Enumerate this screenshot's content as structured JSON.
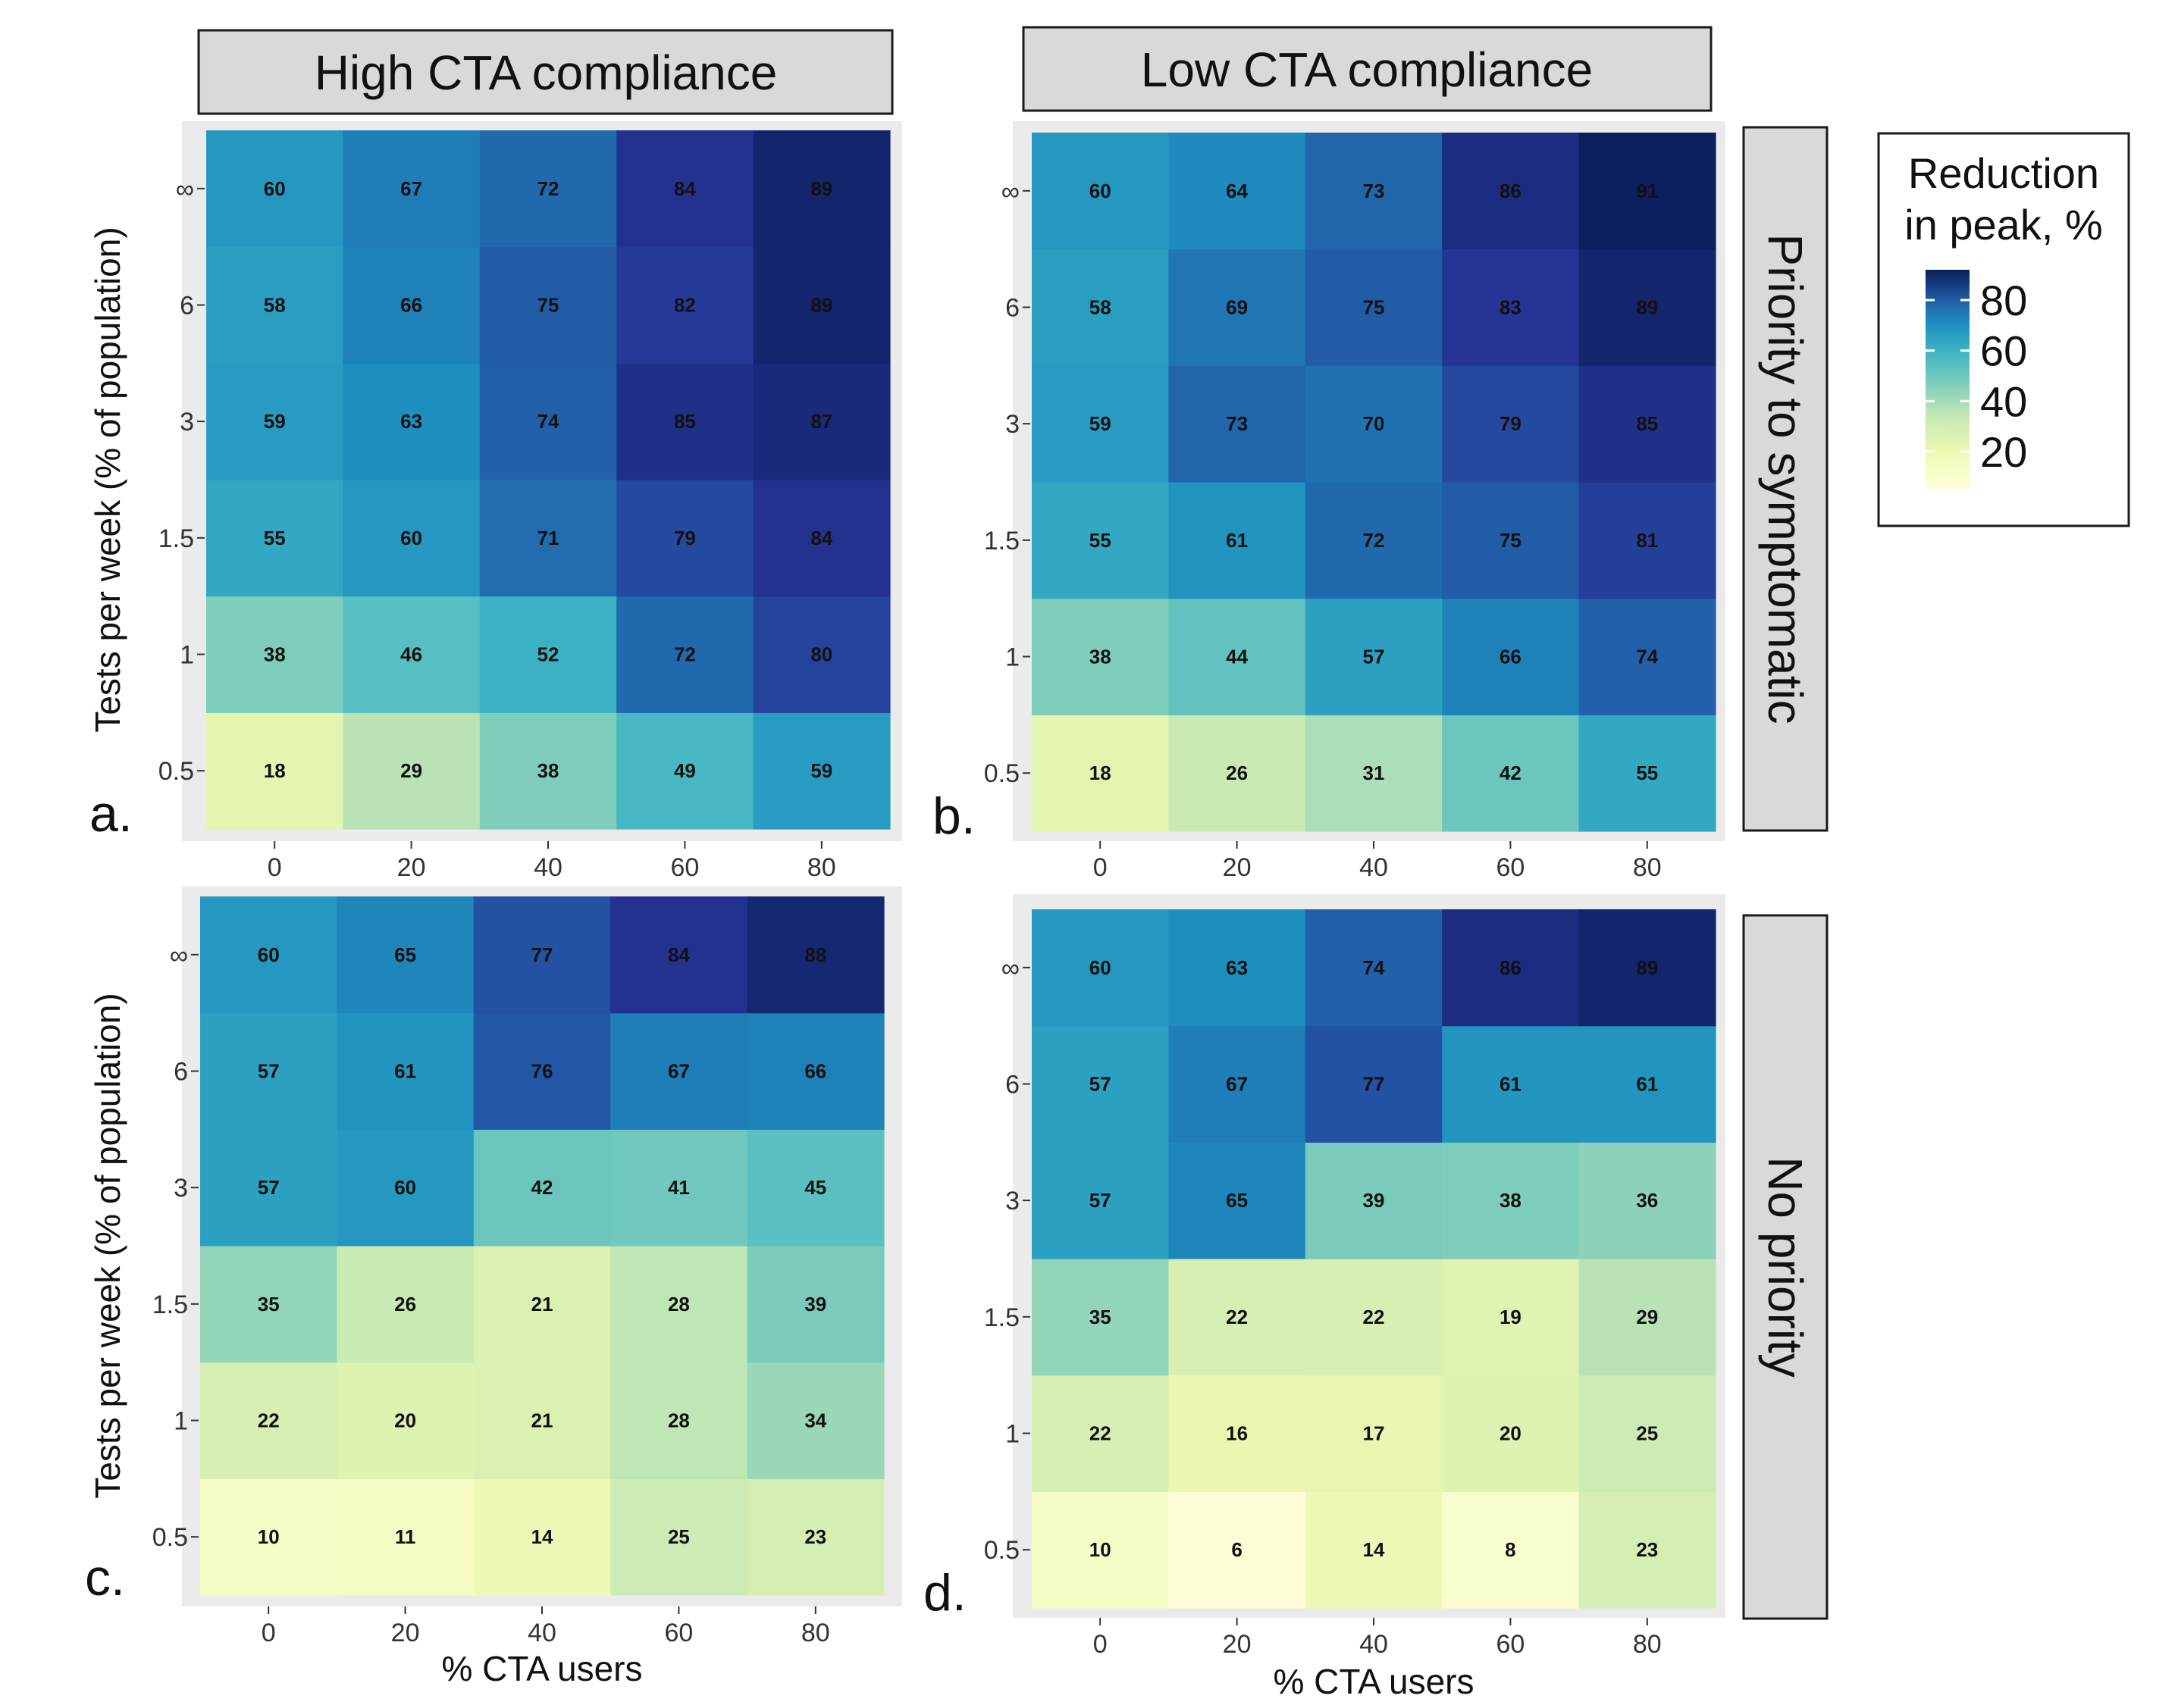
{
  "column_headers": {
    "left": "High CTA compliance",
    "right": "Low CTA compliance"
  },
  "row_strips": {
    "top": "Priority to symptomatic",
    "bottom": "No priority"
  },
  "legend": {
    "title_line1": "Reduction",
    "title_line2": "in peak, %",
    "ticks": [
      "80",
      "60",
      "40",
      "20"
    ],
    "tick_values": [
      80,
      60,
      40,
      20
    ],
    "scale_min": 5,
    "scale_max": 92
  },
  "colors": {
    "low": "#ffffd9",
    "mid_low": "#c7e9b4",
    "mid": "#41b6c4",
    "mid_high": "#2c7fb8",
    "high": "#081d58",
    "strip_fill": "#d9d9d9",
    "panel_bg": "#ebebeb"
  },
  "chart_data": [
    {
      "type": "heatmap",
      "panel_label": "a.",
      "xlabel": "% CTA users",
      "ylabel": "Tests per week (% of population)",
      "x_categories": [
        "0",
        "20",
        "40",
        "60",
        "80"
      ],
      "y_categories": [
        "0.5",
        "1",
        "1.5",
        "3",
        "6",
        "∞"
      ],
      "values": [
        [
          18,
          29,
          38,
          49,
          59
        ],
        [
          38,
          46,
          52,
          72,
          80
        ],
        [
          55,
          60,
          71,
          79,
          84
        ],
        [
          59,
          63,
          74,
          85,
          87
        ],
        [
          58,
          66,
          75,
          82,
          89
        ],
        [
          60,
          67,
          72,
          84,
          89
        ]
      ]
    },
    {
      "type": "heatmap",
      "panel_label": "b.",
      "xlabel": "% CTA users",
      "ylabel": "Tests per week (% of population)",
      "x_categories": [
        "0",
        "20",
        "40",
        "60",
        "80"
      ],
      "y_categories": [
        "0.5",
        "1",
        "1.5",
        "3",
        "6",
        "∞"
      ],
      "values": [
        [
          18,
          26,
          31,
          42,
          55
        ],
        [
          38,
          44,
          57,
          66,
          74
        ],
        [
          55,
          61,
          72,
          75,
          81
        ],
        [
          59,
          73,
          70,
          79,
          85
        ],
        [
          58,
          69,
          75,
          83,
          89
        ],
        [
          60,
          64,
          73,
          86,
          91
        ]
      ]
    },
    {
      "type": "heatmap",
      "panel_label": "c.",
      "xlabel": "% CTA users",
      "ylabel": "Tests per week (% of population)",
      "x_categories": [
        "0",
        "20",
        "40",
        "60",
        "80"
      ],
      "y_categories": [
        "0.5",
        "1",
        "1.5",
        "3",
        "6",
        "∞"
      ],
      "values": [
        [
          10,
          11,
          14,
          25,
          23
        ],
        [
          22,
          20,
          21,
          28,
          34
        ],
        [
          35,
          26,
          21,
          28,
          39
        ],
        [
          57,
          60,
          42,
          41,
          45
        ],
        [
          57,
          61,
          76,
          67,
          66
        ],
        [
          60,
          65,
          77,
          84,
          88
        ]
      ]
    },
    {
      "type": "heatmap",
      "panel_label": "d.",
      "xlabel": "% CTA users",
      "ylabel": "Tests per week (% of population)",
      "x_categories": [
        "0",
        "20",
        "40",
        "60",
        "80"
      ],
      "y_categories": [
        "0.5",
        "1",
        "1.5",
        "3",
        "6",
        "∞"
      ],
      "values": [
        [
          10,
          6,
          14,
          8,
          23
        ],
        [
          22,
          16,
          17,
          20,
          25
        ],
        [
          35,
          22,
          22,
          19,
          29
        ],
        [
          57,
          65,
          39,
          38,
          36
        ],
        [
          57,
          67,
          77,
          61,
          61
        ],
        [
          60,
          63,
          74,
          86,
          89
        ]
      ]
    }
  ]
}
